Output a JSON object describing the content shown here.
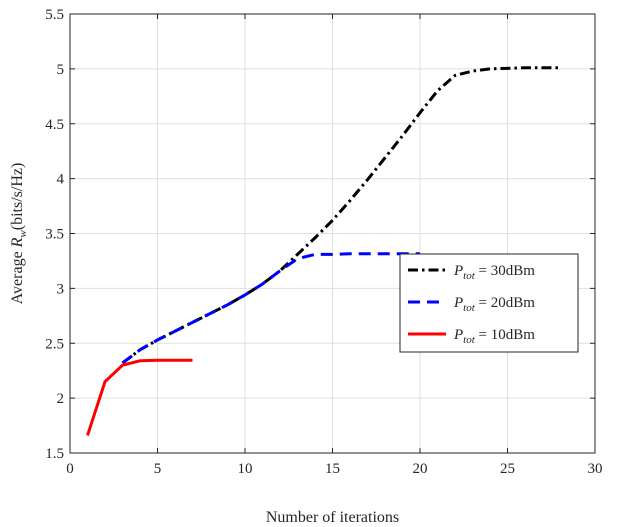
{
  "chart_data": {
    "type": "line",
    "xlabel": "Number of iterations",
    "ylabel_prefix": "Average ",
    "ylabel_var": "R",
    "ylabel_sub": "w",
    "ylabel_suffix": "(bits/s/Hz)",
    "xlim": [
      0,
      30
    ],
    "ylim": [
      1.5,
      5.5
    ],
    "xticks": [
      0,
      5,
      10,
      15,
      20,
      25,
      30
    ],
    "yticks": [
      1.5,
      2,
      2.5,
      3,
      3.5,
      4,
      4.5,
      5,
      5.5
    ],
    "grid": true,
    "legend_position": "right-middle",
    "series": [
      {
        "name": "P_tot = 30dBm",
        "legend_var": "P",
        "legend_sub": "tot",
        "legend_rest": " = 30dBm",
        "color": "#000000",
        "style": "dash-dot",
        "x": [
          3,
          4,
          5,
          6,
          7,
          8,
          9,
          10,
          11,
          12,
          13,
          14,
          15,
          16,
          17,
          18,
          19,
          20,
          21,
          22,
          23,
          24,
          25,
          26,
          27,
          28
        ],
        "y": [
          2.32,
          2.44,
          2.53,
          2.61,
          2.69,
          2.77,
          2.85,
          2.94,
          3.04,
          3.16,
          3.31,
          3.46,
          3.62,
          3.8,
          3.99,
          4.19,
          4.39,
          4.6,
          4.8,
          4.94,
          4.98,
          5.0,
          5.005,
          5.01,
          5.01,
          5.01
        ]
      },
      {
        "name": "P_tot = 20dBm",
        "legend_var": "P",
        "legend_sub": "tot",
        "legend_rest": " = 20dBm",
        "color": "#0000ff",
        "style": "dashed",
        "x": [
          3,
          4,
          5,
          6,
          7,
          8,
          9,
          10,
          11,
          12,
          13,
          14,
          15,
          16,
          17,
          18,
          19,
          20
        ],
        "y": [
          2.32,
          2.44,
          2.53,
          2.61,
          2.69,
          2.77,
          2.85,
          2.94,
          3.04,
          3.16,
          3.27,
          3.31,
          3.31,
          3.315,
          3.315,
          3.315,
          3.315,
          3.315
        ]
      },
      {
        "name": "P_tot = 10dBm",
        "legend_var": "P",
        "legend_sub": "tot",
        "legend_rest": " = 10dBm",
        "color": "#ff0000",
        "style": "solid",
        "x": [
          1,
          2,
          3,
          4,
          5,
          6,
          7
        ],
        "y": [
          1.66,
          2.15,
          2.3,
          2.34,
          2.345,
          2.345,
          2.345
        ]
      }
    ]
  }
}
